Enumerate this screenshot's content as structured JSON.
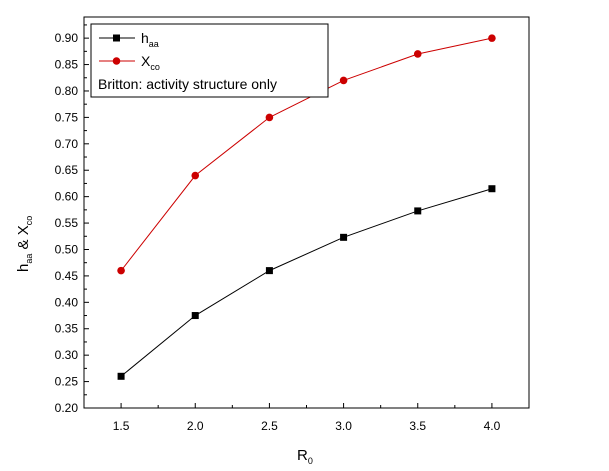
{
  "chart_data": {
    "type": "line",
    "x": [
      1.5,
      2.0,
      2.5,
      3.0,
      3.5,
      4.0
    ],
    "x_ticks": [
      "1.5",
      "2.0",
      "2.5",
      "3.0",
      "3.5",
      "4.0"
    ],
    "y_ticks": [
      "0.20",
      "0.25",
      "0.30",
      "0.35",
      "0.40",
      "0.45",
      "0.50",
      "0.55",
      "0.60",
      "0.65",
      "0.70",
      "0.75",
      "0.80",
      "0.85",
      "0.90"
    ],
    "xlim": [
      1.25,
      4.25
    ],
    "ylim": [
      0.2,
      0.94
    ],
    "xlabel": {
      "main": "R",
      "sub": "0"
    },
    "ylabel": {
      "p1": "h",
      "s1": "aa",
      "p2": " & X",
      "s2": "co"
    },
    "series": [
      {
        "name": {
          "main": "h",
          "sub": "aa"
        },
        "color": "#000000",
        "marker": "square",
        "values": [
          0.26,
          0.375,
          0.46,
          0.523,
          0.573,
          0.615
        ]
      },
      {
        "name": {
          "main": "X",
          "sub": "co"
        },
        "color": "#cc0000",
        "marker": "circle",
        "values": [
          0.46,
          0.64,
          0.75,
          0.82,
          0.87,
          0.9
        ]
      }
    ],
    "annotation": "Britton: activity structure only",
    "legend": "top-left",
    "grid": false
  }
}
